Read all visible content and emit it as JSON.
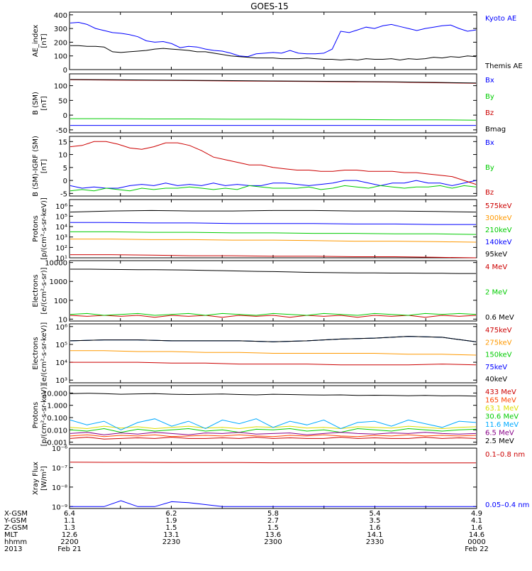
{
  "title": "GOES-15",
  "chart_data": [
    {
      "type": "line",
      "ylabel": [
        "AE_index",
        "[nT]"
      ],
      "yticks": [
        "400",
        "300",
        "200",
        "100",
        "0"
      ],
      "ylim": [
        0,
        420
      ],
      "tick_values": [
        400,
        300,
        200,
        100,
        0
      ],
      "series": [
        {
          "name": "Kyoto AE",
          "color": "#0000ff",
          "values": [
            340,
            345,
            330,
            300,
            285,
            270,
            265,
            255,
            240,
            210,
            200,
            205,
            190,
            160,
            170,
            165,
            150,
            140,
            135,
            120,
            100,
            95,
            115,
            120,
            125,
            120,
            140,
            120,
            115,
            115,
            120,
            150,
            280,
            270,
            290,
            310,
            300,
            320,
            330,
            315,
            300,
            285,
            300,
            310,
            320,
            325,
            300,
            280,
            290
          ]
        },
        {
          "name": "Themis AE",
          "color": "#000000",
          "values": [
            175,
            175,
            170,
            170,
            165,
            130,
            125,
            130,
            135,
            140,
            150,
            155,
            150,
            145,
            140,
            130,
            130,
            120,
            110,
            100,
            95,
            90,
            85,
            85,
            85,
            80,
            80,
            80,
            85,
            80,
            75,
            75,
            70,
            75,
            70,
            80,
            75,
            75,
            80,
            70,
            80,
            75,
            80,
            90,
            85,
            95,
            90,
            100,
            95
          ]
        }
      ]
    },
    {
      "type": "line",
      "ylabel": [
        "B (SM)",
        "[nT]"
      ],
      "yticks": [
        "100",
        "50",
        "0",
        "-50"
      ],
      "ylim": [
        -60,
        140
      ],
      "tick_values": [
        100,
        50,
        0,
        -50
      ],
      "series": [
        {
          "name": "Bx",
          "color": "#0000ff",
          "values": [
            -35,
            -35,
            -35,
            -35,
            -35,
            -35,
            -35,
            -35,
            -35,
            -35,
            -35
          ]
        },
        {
          "name": "By",
          "color": "#00cc00",
          "values": [
            -12,
            -12,
            -13,
            -13,
            -14,
            -14,
            -15,
            -15,
            -16,
            -16,
            -17
          ]
        },
        {
          "name": "Bz",
          "color": "#cc0000",
          "values": [
            120,
            119,
            118,
            117,
            116,
            115,
            114,
            113,
            112,
            110,
            108
          ]
        },
        {
          "name": "Bmag",
          "color": "#000000",
          "values": [
            121,
            120,
            119,
            118,
            117,
            116,
            115,
            114,
            113,
            111,
            109
          ]
        }
      ]
    },
    {
      "type": "line",
      "ylabel": [
        "B (SM)-IGRF (SM)",
        "[nT]"
      ],
      "yticks": [
        "15",
        "10",
        "5",
        "0",
        "-5"
      ],
      "ylim": [
        -6,
        17
      ],
      "tick_values": [
        15,
        10,
        5,
        0,
        -5
      ],
      "series": [
        {
          "name": "Bx",
          "color": "#0000ff",
          "values": [
            -2,
            -3,
            -2.5,
            -3,
            -3,
            -2,
            -1.5,
            -2,
            -1,
            -2,
            -1.5,
            -2,
            -1,
            -2,
            -1.5,
            -2,
            -2,
            -1,
            -1,
            -1.5,
            -2,
            -1.5,
            -1,
            0,
            0,
            -1,
            -2,
            -1,
            -1,
            0,
            -1,
            -1,
            -2,
            -1,
            0
          ]
        },
        {
          "name": "By",
          "color": "#00cc00",
          "values": [
            -4,
            -3.5,
            -4,
            -3,
            -3.5,
            -4,
            -3,
            -3.5,
            -3,
            -3,
            -2.5,
            -3,
            -3.5,
            -3,
            -3.5,
            -2,
            -2.5,
            -3,
            -3,
            -3,
            -2.5,
            -3.5,
            -3,
            -2,
            -2.5,
            -3,
            -2,
            -2.5,
            -3,
            -2.5,
            -2.5,
            -2,
            -3,
            -2,
            -2.5
          ]
        },
        {
          "name": "Bz",
          "color": "#cc0000",
          "values": [
            13,
            13.5,
            15,
            15,
            14,
            12.5,
            12,
            13,
            14.5,
            14.5,
            13.5,
            11.5,
            9,
            8,
            7,
            6,
            6,
            5,
            4.5,
            4,
            4,
            3.5,
            3.5,
            4,
            4,
            3.5,
            3.5,
            3.5,
            3,
            3,
            2.5,
            2,
            1.5,
            0,
            -1.5
          ]
        }
      ]
    },
    {
      "type": "line",
      "scale": "log",
      "ylabel": [
        "Protons",
        "[p/(cm²-s-sr-keV)]"
      ],
      "yticks": [
        "10⁶",
        "10⁵",
        "10⁴",
        "10³",
        "10²",
        "10¹"
      ],
      "ylim": [
        1,
        6.6
      ],
      "tick_values": [
        6,
        5,
        4,
        3,
        2,
        1
      ],
      "series": [
        {
          "name": "575keV",
          "color": "#cc0000",
          "values": [
            1.3,
            1.3,
            1.25,
            1.2,
            1.2,
            1.15,
            1.15,
            1.1,
            1.1,
            1.05,
            1.0
          ]
        },
        {
          "name": "300keV",
          "color": "#ff9900",
          "values": [
            2.8,
            2.8,
            2.75,
            2.75,
            2.7,
            2.7,
            2.65,
            2.6,
            2.6,
            2.55,
            2.5
          ]
        },
        {
          "name": "210keV",
          "color": "#00cc00",
          "values": [
            3.5,
            3.5,
            3.45,
            3.45,
            3.4,
            3.4,
            3.35,
            3.35,
            3.3,
            3.3,
            3.25
          ]
        },
        {
          "name": "140keV",
          "color": "#0000ff",
          "values": [
            4.4,
            4.4,
            4.35,
            4.35,
            4.3,
            4.3,
            4.3,
            4.25,
            4.25,
            4.2,
            4.2
          ]
        },
        {
          "name": "95keV",
          "color": "#000000",
          "values": [
            5.4,
            5.5,
            5.55,
            5.5,
            5.5,
            5.55,
            5.55,
            5.5,
            5.5,
            5.45,
            5.4
          ]
        }
      ]
    },
    {
      "type": "line",
      "scale": "log",
      "ylabel": [
        "Electrons",
        "[e/(cm²-s-sr)]"
      ],
      "yticks": [
        "10000",
        "1000",
        "100",
        "10"
      ],
      "ylim": [
        0.9,
        4.1
      ],
      "tick_values": [
        4,
        3,
        2,
        1
      ],
      "series": [
        {
          "name": "4 MeV",
          "color": "#cc0000",
          "values": [
            1.2,
            1.15,
            1.2,
            1.15,
            1.2,
            1.1,
            1.2,
            1.15,
            1.2,
            1.1,
            1.2,
            1.15,
            1.2,
            1.1,
            1.2,
            1.15,
            1.2,
            1.1,
            1.2,
            1.15,
            1.2,
            1.1,
            1.2,
            1.15,
            1.2
          ]
        },
        {
          "name": "2 MeV",
          "color": "#00cc00",
          "values": [
            1.25,
            1.3,
            1.2,
            1.25,
            1.3,
            1.2,
            1.25,
            1.3,
            1.2,
            1.3,
            1.25,
            1.2,
            1.3,
            1.25,
            1.2,
            1.3,
            1.25,
            1.2,
            1.3,
            1.25,
            1.2,
            1.3,
            1.25,
            1.3,
            1.25
          ]
        },
        {
          "name": "0.6 MeV",
          "color": "#000000",
          "values": [
            3.65,
            3.65,
            3.64,
            3.63,
            3.62,
            3.62,
            3.61,
            3.6,
            3.58,
            3.57,
            3.55,
            3.53,
            3.52,
            3.5,
            3.48,
            3.47,
            3.46,
            3.45,
            3.45,
            3.44,
            3.44,
            3.43,
            3.43,
            3.42,
            3.42
          ]
        }
      ]
    },
    {
      "type": "line",
      "scale": "log",
      "ylabel": [
        "Electrons",
        "[e/(cm²-s-sr-keV)]"
      ],
      "yticks": [
        "10⁶",
        "10⁵",
        "10⁴",
        "10³"
      ],
      "ylim": [
        2.85,
        6.15
      ],
      "tick_values": [
        6,
        5,
        4,
        3
      ],
      "series": [
        {
          "name": "475keV",
          "color": "#cc0000",
          "values": [
            4.0,
            4.0,
            4.0,
            3.95,
            3.95,
            3.9,
            3.9,
            3.9,
            3.85,
            3.85,
            3.85,
            3.9,
            3.85
          ]
        },
        {
          "name": "275keV",
          "color": "#ff9900",
          "values": [
            4.65,
            4.65,
            4.6,
            4.6,
            4.55,
            4.55,
            4.5,
            4.5,
            4.5,
            4.5,
            4.45,
            4.45,
            4.4
          ]
        },
        {
          "name": "150keV",
          "color": "#00cc00",
          "values": [
            5.2,
            5.25,
            5.25,
            5.2,
            5.2,
            5.2,
            5.15,
            5.2,
            5.3,
            5.35,
            5.45,
            5.4,
            5.15
          ]
        },
        {
          "name": "75keV",
          "color": "#0000ff",
          "values": [
            5.2,
            5.25,
            5.25,
            5.2,
            5.2,
            5.2,
            5.15,
            5.2,
            5.3,
            5.35,
            5.45,
            5.4,
            5.15
          ]
        },
        {
          "name": "40keV",
          "color": "#000000",
          "values": [
            5.2,
            5.25,
            5.25,
            5.2,
            5.2,
            5.2,
            5.15,
            5.2,
            5.3,
            5.35,
            5.45,
            5.4,
            5.15
          ]
        }
      ]
    },
    {
      "type": "line",
      "scale": "log",
      "ylabel": [
        "Protons",
        "[p/(cm²-s-sr-keV)]"
      ],
      "yticks": [
        "10.000",
        "1.000",
        "0.100",
        "0.010",
        "0.001"
      ],
      "ylim": [
        -3.2,
        1.6
      ],
      "tick_values": [
        1,
        0,
        -1,
        -2,
        -3
      ],
      "series": [
        {
          "name": "433 MeV",
          "color": "#cc0000",
          "values": [
            -2.7,
            -2.6,
            -2.75,
            -2.7,
            -2.65,
            -2.7,
            -2.6,
            -2.7,
            -2.7,
            -2.65,
            -2.7,
            -2.6,
            -2.7,
            -2.65,
            -2.7,
            -2.7,
            -2.6,
            -2.7,
            -2.65,
            -2.7,
            -2.7,
            -2.6,
            -2.7,
            -2.65,
            -2.7
          ]
        },
        {
          "name": "165 MeV",
          "color": "#ff4400",
          "values": [
            -2.5,
            -2.4,
            -2.55,
            -2.45,
            -2.5,
            -2.4,
            -2.55,
            -2.5,
            -2.45,
            -2.5,
            -2.4,
            -2.5,
            -2.55,
            -2.45,
            -2.5,
            -2.4,
            -2.5,
            -2.55,
            -2.45,
            -2.5,
            -2.4,
            -2.5,
            -2.45,
            -2.5,
            -2.45
          ]
        },
        {
          "name": "63.1 MeV",
          "color": "#dddd00",
          "values": [
            -1.8,
            -1.9,
            -1.7,
            -1.85,
            -1.75,
            -1.9,
            -1.8,
            -1.7,
            -1.85,
            -1.8,
            -1.9,
            -1.75,
            -1.8,
            -1.7,
            -1.85,
            -1.8,
            -1.9,
            -1.75,
            -1.8,
            -1.85,
            -1.7,
            -1.8,
            -1.9,
            -1.8,
            -1.75
          ]
        },
        {
          "name": "30.6 MeV",
          "color": "#00cc00",
          "values": [
            -2.0,
            -2.1,
            -1.9,
            -2.2,
            -1.95,
            -2.1,
            -2.0,
            -1.9,
            -2.1,
            -2.0,
            -2.2,
            -1.95,
            -2.0,
            -1.9,
            -2.1,
            -2.0,
            -2.2,
            -1.9,
            -2.0,
            -2.1,
            -1.9,
            -2.0,
            -2.1,
            -2.0,
            -1.95
          ]
        },
        {
          "name": "11.6 MeV",
          "color": "#00aaff",
          "values": [
            -1.2,
            -1.6,
            -1.3,
            -2.0,
            -1.4,
            -1.1,
            -1.7,
            -1.3,
            -1.9,
            -1.2,
            -1.5,
            -1.1,
            -1.8,
            -1.3,
            -1.6,
            -1.2,
            -1.9,
            -1.4,
            -1.3,
            -1.7,
            -1.2,
            -1.5,
            -1.8,
            -1.3,
            -1.4
          ]
        },
        {
          "name": "6.5 MeV",
          "color": "#880088",
          "values": [
            -2.3,
            -2.2,
            -2.4,
            -2.25,
            -2.35,
            -2.2,
            -2.3,
            -2.4,
            -2.25,
            -2.3,
            -2.2,
            -2.35,
            -2.3,
            -2.25,
            -2.4,
            -2.3,
            -2.2,
            -2.3,
            -2.35,
            -2.25,
            -2.3,
            -2.2,
            -2.3,
            -2.35,
            -2.3
          ]
        },
        {
          "name": "2.5 MeV",
          "color": "#000000",
          "values": [
            0.95,
            0.98,
            0.95,
            0.9,
            0.93,
            0.95,
            0.9,
            0.88,
            0.9,
            0.92,
            0.88,
            0.85,
            0.9,
            0.88,
            0.85,
            0.83,
            0.85,
            0.8,
            0.82,
            0.8,
            0.78,
            0.8,
            0.77,
            0.78,
            0.75
          ]
        }
      ]
    },
    {
      "type": "line",
      "scale": "log",
      "ylabel": [
        "Xray Flux",
        "[W/m²]"
      ],
      "yticks": [
        "10⁻⁶",
        "10⁻⁷",
        "10⁻⁸",
        "10⁻⁹"
      ],
      "ylim": [
        -9.1,
        -6
      ],
      "tick_values": [
        -6,
        -7,
        -8,
        -9
      ],
      "series": [
        {
          "name": "0.1–0.8 nm",
          "color": "#cc0000",
          "values": [
            -6.72,
            -6.73,
            -6.73,
            -6.74,
            -6.74,
            -6.74,
            -6.75,
            -6.75,
            -6.75,
            -6.75,
            -6.76,
            -6.76,
            -6.76
          ]
        },
        {
          "name": "0.05–0.4 nm",
          "color": "#0000ff",
          "values": [
            -9.0,
            -9.0,
            -9.0,
            -8.7,
            -9.0,
            -9.0,
            -8.75,
            -8.8,
            -8.9,
            -9.0,
            -9.0,
            -9.0,
            -9.0,
            -9.0,
            -9.0,
            -9.0,
            -9.0,
            -9.0,
            -9.0,
            -9.0,
            -9.0,
            -9.0,
            -9.0,
            -9.0,
            -9.0
          ]
        }
      ]
    }
  ],
  "footer": {
    "labels": [
      "X-GSM",
      "Y-GSM",
      "Z-GSM",
      "MLT",
      "hhmm",
      "2013"
    ],
    "columns": [
      [
        "6.4",
        "1.1",
        "1.3",
        "12.6",
        "2200",
        "Feb 21"
      ],
      [
        "6.2",
        "1.9",
        "1.5",
        "13.1",
        "2230",
        ""
      ],
      [
        "5.8",
        "2.7",
        "1.5",
        "13.6",
        "2300",
        ""
      ],
      [
        "5.4",
        "3.5",
        "1.6",
        "14.1",
        "2330",
        ""
      ],
      [
        "4.9",
        "4.1",
        "1.6",
        "14.6",
        "0000",
        "Feb 22"
      ]
    ]
  },
  "colors": {
    "axes": "#000000",
    "background": "#ffffff"
  }
}
